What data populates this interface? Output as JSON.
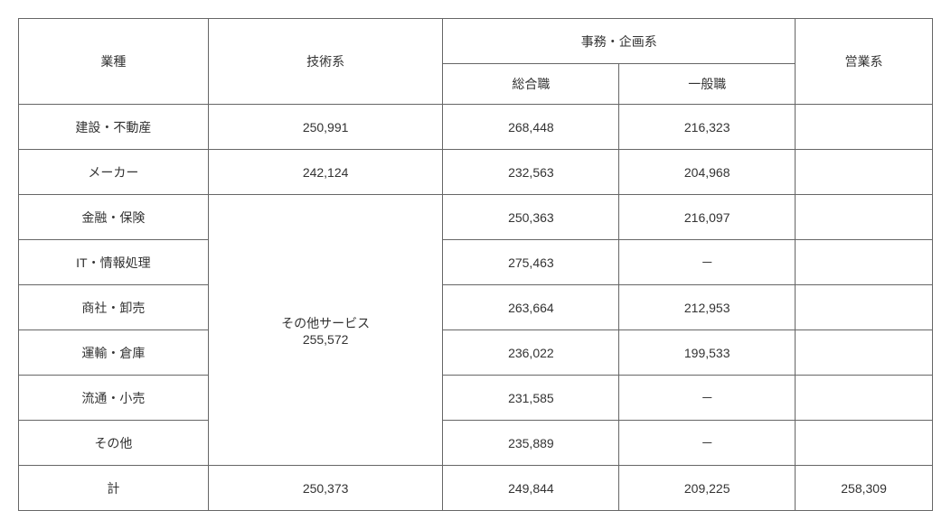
{
  "table": {
    "type": "table",
    "background_color": "#ffffff",
    "border_color": "#666666",
    "text_color": "#333333",
    "font_size": 14,
    "header": {
      "industry": "業種",
      "technical": "技術系",
      "clerical_group": "事務・企画系",
      "sogo": "総合職",
      "ippan": "一般職",
      "sales": "営業系"
    },
    "merged_tech_cell": {
      "label": "その他サービス",
      "value": "255,572"
    },
    "rows": [
      {
        "industry": "建設・不動産",
        "technical": "250,991",
        "sogo": "268,448",
        "ippan": "216,323",
        "sales": ""
      },
      {
        "industry": "メーカー",
        "technical": "242,124",
        "sogo": "232,563",
        "ippan": "204,968",
        "sales": ""
      },
      {
        "industry": "金融・保険",
        "technical": null,
        "sogo": "250,363",
        "ippan": "216,097",
        "sales": ""
      },
      {
        "industry": "IT・情報処理",
        "technical": null,
        "sogo": "275,463",
        "ippan": "－",
        "sales": ""
      },
      {
        "industry": "商社・卸売",
        "technical": null,
        "sogo": "263,664",
        "ippan": "212,953",
        "sales": ""
      },
      {
        "industry": "運輸・倉庫",
        "technical": null,
        "sogo": "236,022",
        "ippan": "199,533",
        "sales": ""
      },
      {
        "industry": "流通・小売",
        "technical": null,
        "sogo": "231,585",
        "ippan": "－",
        "sales": ""
      },
      {
        "industry": "その他",
        "technical": null,
        "sogo": "235,889",
        "ippan": "－",
        "sales": ""
      },
      {
        "industry": "計",
        "technical": "250,373",
        "sogo": "249,844",
        "ippan": "209,225",
        "sales": "258,309"
      }
    ],
    "column_widths": {
      "industry": 210,
      "technical": 260,
      "sogo": 195,
      "ippan": 195,
      "sales": 152
    }
  }
}
